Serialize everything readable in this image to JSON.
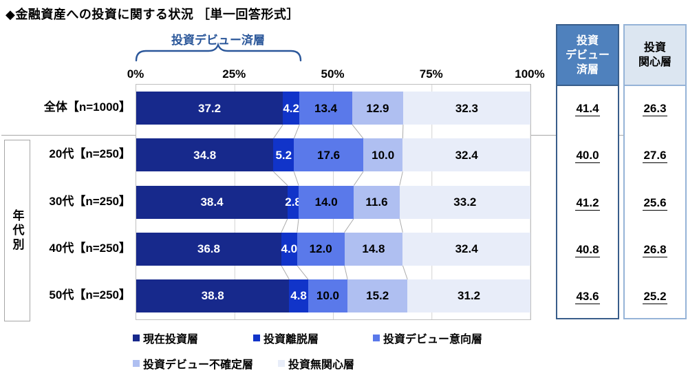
{
  "title": "◆金融資産への投資に関する状況 ［単一回答形式］",
  "bracket_label": "投資デビュー済層",
  "group_label": "年代別",
  "accent_color": "#2B579A",
  "colors": {
    "grid": "#D3D3D3",
    "connector": "#ABABAB",
    "plot_border": "#BFBFBF",
    "panel_dark_fill": "#4F81BD",
    "panel_dark_border": "#385D8A",
    "panel_light_fill": "#DCE6F1",
    "panel_light_border": "#95B3D7"
  },
  "chart_data": {
    "type": "bar",
    "stacked": true,
    "orientation": "horizontal",
    "xlim": [
      0,
      100
    ],
    "ticks": [
      0,
      25,
      50,
      75,
      100
    ],
    "tick_labels": [
      "0%",
      "25%",
      "50%",
      "75%",
      "100%"
    ],
    "grid": true,
    "categories": [
      "全体【n=1000】",
      "20代【n=250】",
      "30代【n=250】",
      "40代【n=250】",
      "50代【n=250】"
    ],
    "series": [
      {
        "name": "現在投資層",
        "color": "#17298C",
        "text_color": "#FFFFFF",
        "values": [
          37.2,
          34.8,
          38.4,
          36.8,
          38.8
        ]
      },
      {
        "name": "投資離脱層",
        "color": "#1134C9",
        "text_color": "#FFFFFF",
        "values": [
          4.2,
          5.2,
          2.8,
          4.0,
          4.8
        ]
      },
      {
        "name": "投資デビュー意向層",
        "color": "#5A79EA",
        "text_color": "#000000",
        "values": [
          13.4,
          17.6,
          14.0,
          12.0,
          10.0
        ]
      },
      {
        "name": "投資デビュー不確定層",
        "color": "#AFBFF1",
        "text_color": "#000000",
        "values": [
          12.9,
          10.0,
          11.6,
          14.8,
          15.2
        ]
      },
      {
        "name": "投資無関心層",
        "color": "#E8EDF9",
        "text_color": "#000000",
        "values": [
          32.3,
          32.4,
          33.2,
          32.4,
          31.2
        ]
      }
    ]
  },
  "legend": [
    {
      "label": "現在投資層",
      "color": "#17298C"
    },
    {
      "label": "投資離脱層",
      "color": "#1134C9"
    },
    {
      "label": "投資デビュー意向層",
      "color": "#5A79EA"
    },
    {
      "label": "投資デビュー不確定層",
      "color": "#AFBFF1"
    },
    {
      "label": "投資無関心層",
      "color": "#E8EDF9"
    }
  ],
  "summary_columns": [
    {
      "style": "dark",
      "header_lines": [
        "投資",
        "デビュー",
        "済層"
      ],
      "values": [
        "41.4",
        "40.0",
        "41.2",
        "40.8",
        "43.6"
      ]
    },
    {
      "style": "light",
      "header_lines": [
        "投資",
        "関心層"
      ],
      "values": [
        "26.3",
        "27.6",
        "25.6",
        "26.8",
        "25.2"
      ]
    }
  ]
}
